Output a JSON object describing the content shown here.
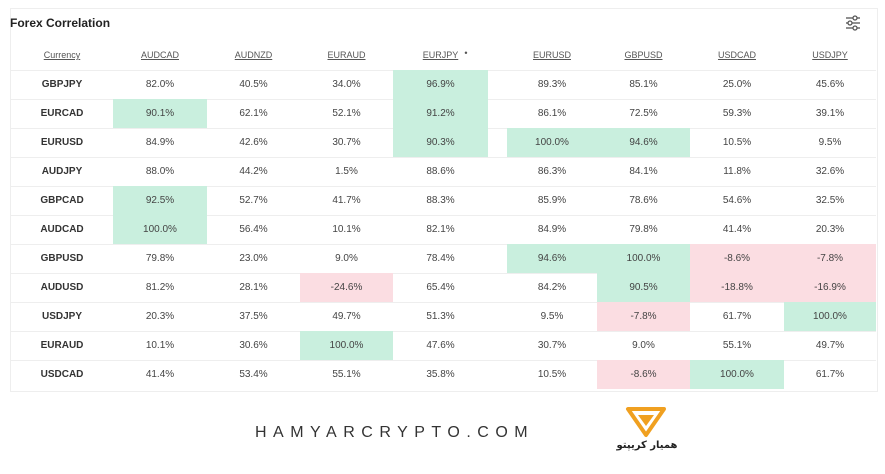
{
  "header": {
    "title": "Forex Correlation"
  },
  "table": {
    "columns": [
      "Currency",
      "AUDCAD",
      "AUDNZD",
      "EURAUD",
      "EURJPY",
      "EURUSD",
      "GBPUSD",
      "USDCAD",
      "USDJPY"
    ],
    "rows": [
      {
        "label": "GBPJPY",
        "cells": [
          "82.0%",
          "40.5%",
          "34.0%",
          "96.9%",
          "89.3%",
          "85.1%",
          "25.0%",
          "45.6%"
        ]
      },
      {
        "label": "EURCAD",
        "cells": [
          "90.1%",
          "62.1%",
          "52.1%",
          "91.2%",
          "86.1%",
          "72.5%",
          "59.3%",
          "39.1%"
        ]
      },
      {
        "label": "EURUSD",
        "cells": [
          "84.9%",
          "42.6%",
          "30.7%",
          "90.3%",
          "100.0%",
          "94.6%",
          "10.5%",
          "9.5%"
        ]
      },
      {
        "label": "AUDJPY",
        "cells": [
          "88.0%",
          "44.2%",
          "1.5%",
          "88.6%",
          "86.3%",
          "84.1%",
          "11.8%",
          "32.6%"
        ]
      },
      {
        "label": "GBPCAD",
        "cells": [
          "92.5%",
          "52.7%",
          "41.7%",
          "88.3%",
          "85.9%",
          "78.6%",
          "54.6%",
          "32.5%"
        ]
      },
      {
        "label": "AUDCAD",
        "cells": [
          "100.0%",
          "56.4%",
          "10.1%",
          "82.1%",
          "84.9%",
          "79.8%",
          "41.4%",
          "20.3%"
        ]
      },
      {
        "label": "GBPUSD",
        "cells": [
          "79.8%",
          "23.0%",
          "9.0%",
          "78.4%",
          "94.6%",
          "100.0%",
          "-8.6%",
          "-7.8%"
        ]
      },
      {
        "label": "AUDUSD",
        "cells": [
          "81.2%",
          "28.1%",
          "-24.6%",
          "65.4%",
          "84.2%",
          "90.5%",
          "-18.8%",
          "-16.9%"
        ]
      },
      {
        "label": "USDJPY",
        "cells": [
          "20.3%",
          "37.5%",
          "49.7%",
          "51.3%",
          "9.5%",
          "-7.8%",
          "61.7%",
          "100.0%"
        ]
      },
      {
        "label": "EURAUD",
        "cells": [
          "10.1%",
          "30.6%",
          "100.0%",
          "47.6%",
          "30.7%",
          "9.0%",
          "55.1%",
          "49.7%"
        ]
      },
      {
        "label": "USDCAD",
        "cells": [
          "41.4%",
          "53.4%",
          "55.1%",
          "35.8%",
          "10.5%",
          "-8.6%",
          "100.0%",
          "61.7%"
        ]
      }
    ],
    "cell_colors": {
      "green": "#c9efde",
      "red": "#fbdde2"
    },
    "highlights": [
      {
        "row": 0,
        "col": 3,
        "color": "green"
      },
      {
        "row": 1,
        "col": 0,
        "color": "green"
      },
      {
        "row": 1,
        "col": 3,
        "color": "green"
      },
      {
        "row": 2,
        "col": 3,
        "color": "green"
      },
      {
        "row": 2,
        "col": 4,
        "color": "green"
      },
      {
        "row": 2,
        "col": 5,
        "color": "green"
      },
      {
        "row": 4,
        "col": 0,
        "color": "green"
      },
      {
        "row": 5,
        "col": 0,
        "color": "green"
      },
      {
        "row": 6,
        "col": 4,
        "color": "green"
      },
      {
        "row": 6,
        "col": 5,
        "color": "green"
      },
      {
        "row": 6,
        "col": 6,
        "color": "red"
      },
      {
        "row": 6,
        "col": 7,
        "color": "red"
      },
      {
        "row": 7,
        "col": 2,
        "color": "red"
      },
      {
        "row": 7,
        "col": 5,
        "color": "green"
      },
      {
        "row": 7,
        "col": 6,
        "color": "red"
      },
      {
        "row": 7,
        "col": 7,
        "color": "red"
      },
      {
        "row": 8,
        "col": 5,
        "color": "red"
      },
      {
        "row": 8,
        "col": 7,
        "color": "green"
      },
      {
        "row": 9,
        "col": 2,
        "color": "green"
      },
      {
        "row": 10,
        "col": 5,
        "color": "red"
      },
      {
        "row": 10,
        "col": 6,
        "color": "green"
      }
    ]
  },
  "footer": {
    "site": "HAMYARCRYPTO.COM",
    "logo_text": "همیار کریپتو"
  }
}
